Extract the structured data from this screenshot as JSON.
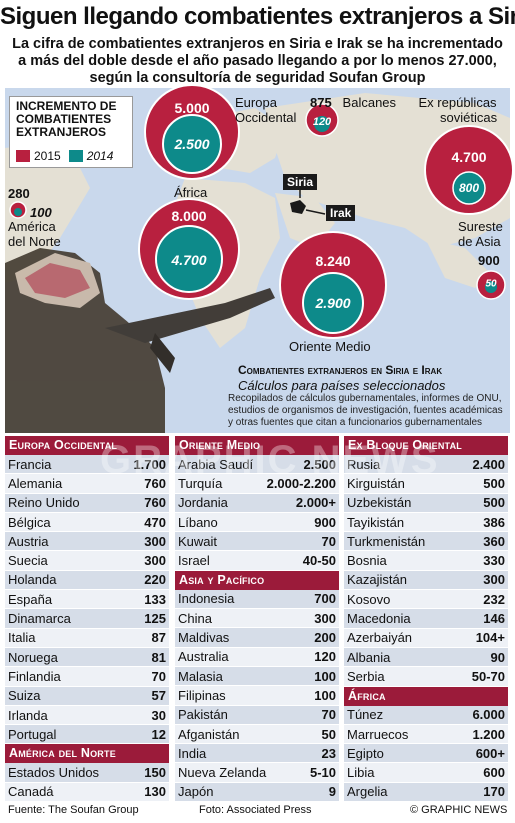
{
  "headline": "Siguen llegando combatientes extranjeros a Siria",
  "subhead": "La cifra de combatientes extranjeros en Siria e Irak se ha incrementado a más del doble desde el año pasado llegando a por lo menos 27.000, según la consultoría de seguridad Soufan Group",
  "legend": {
    "title_line1": "Incremento de",
    "title_line2": "combatientes",
    "title_line3": "extranjeros",
    "year_2015": "2015",
    "year_2014": "2014",
    "color_2015": "#b8203f",
    "color_2014": "#0d8a8a"
  },
  "regions": {
    "europa": {
      "name_line1": "Europa",
      "name_line2": "Occidental",
      "v2015": "5.000",
      "v2014": "2.500"
    },
    "balcanes": {
      "name": "Balcanes",
      "v2015": "875",
      "v2014": "120"
    },
    "exrep": {
      "name_line1": "Ex repúblicas",
      "name_line2": "soviéticas",
      "v2015": "4.700",
      "v2014": "800"
    },
    "america": {
      "name_line1": "América",
      "name_line2": "del Norte",
      "v2015": "280",
      "v2014": "100"
    },
    "africa": {
      "name": "África",
      "v2015": "8.000",
      "v2014": "4.700"
    },
    "oriente": {
      "name": "Oriente Medio",
      "v2015": "8.240",
      "v2014": "2.900"
    },
    "sureste": {
      "name_line1": "Sureste",
      "name_line2": "de Asia",
      "v2015": "900",
      "v2014": "50"
    }
  },
  "tags": {
    "siria": "Siria",
    "irak": "Irak"
  },
  "info": {
    "title": "Combatientes extranjeros en Siria e Irak",
    "subtitle": "Cálculos para países seleccionados",
    "source": "Recopilados de cálculos gubernamentales, informes de ONU, estudios de organismos de investigación, fuentes académicas y otras fuentes que citan a funcionarios gubernamentales"
  },
  "watermark": "GRAPHIC NEWS",
  "col1": {
    "europa": {
      "title": "Europa Occidental",
      "rows": [
        {
          "n": "Francia",
          "v": "1.700"
        },
        {
          "n": "Alemania",
          "v": "760"
        },
        {
          "n": "Reino Unido",
          "v": "760"
        },
        {
          "n": "Bélgica",
          "v": "470"
        },
        {
          "n": "Austria",
          "v": "300"
        },
        {
          "n": "Suecia",
          "v": "300"
        },
        {
          "n": "Holanda",
          "v": "220"
        },
        {
          "n": "España",
          "v": "133"
        },
        {
          "n": "Dinamarca",
          "v": "125"
        },
        {
          "n": "Italia",
          "v": "87"
        },
        {
          "n": "Noruega",
          "v": "81"
        },
        {
          "n": "Finlandia",
          "v": "70"
        },
        {
          "n": "Suiza",
          "v": "57"
        },
        {
          "n": "Irlanda",
          "v": "30"
        },
        {
          "n": "Portugal",
          "v": "12"
        }
      ]
    },
    "america": {
      "title": "América del Norte",
      "rows": [
        {
          "n": "Estados Unidos",
          "v": "150"
        },
        {
          "n": "Canadá",
          "v": "130"
        }
      ]
    }
  },
  "col2": {
    "oriente": {
      "title": "Oriente Medio",
      "rows": [
        {
          "n": "Arabia Saudí",
          "v": "2.500"
        },
        {
          "n": "Turquía",
          "v": "2.000-2.200"
        },
        {
          "n": "Jordania",
          "v": "2.000+"
        },
        {
          "n": "Líbano",
          "v": "900"
        },
        {
          "n": "Kuwait",
          "v": "70"
        },
        {
          "n": "Israel",
          "v": "40-50"
        }
      ]
    },
    "asia": {
      "title": "Asia y Pacífico",
      "rows": [
        {
          "n": "Indonesia",
          "v": "700"
        },
        {
          "n": "China",
          "v": "300"
        },
        {
          "n": "Maldivas",
          "v": "200"
        },
        {
          "n": "Australia",
          "v": "120"
        },
        {
          "n": "Malasia",
          "v": "100"
        },
        {
          "n": "Filipinas",
          "v": "100"
        },
        {
          "n": "Pakistán",
          "v": "70"
        },
        {
          "n": "Afganistán",
          "v": "50"
        },
        {
          "n": "India",
          "v": "23"
        },
        {
          "n": "Nueva Zelanda",
          "v": "5-10"
        },
        {
          "n": "Japón",
          "v": "9"
        }
      ]
    }
  },
  "col3": {
    "exbloque": {
      "title": "Ex Bloque Oriental",
      "rows": [
        {
          "n": "Rusia",
          "v": "2.400"
        },
        {
          "n": "Kirguistán",
          "v": "500"
        },
        {
          "n": "Uzbekistán",
          "v": "500"
        },
        {
          "n": "Tayikistán",
          "v": "386"
        },
        {
          "n": "Turkmenistán",
          "v": "360"
        },
        {
          "n": "Bosnia",
          "v": "330"
        },
        {
          "n": "Kazajistán",
          "v": "300"
        },
        {
          "n": "Kosovo",
          "v": "232"
        },
        {
          "n": "Macedonia",
          "v": "146"
        },
        {
          "n": "Azerbaiyán",
          "v": "104+"
        },
        {
          "n": "Albania",
          "v": "90"
        },
        {
          "n": "Serbia",
          "v": "50-70"
        }
      ]
    },
    "africa": {
      "title": "África",
      "rows": [
        {
          "n": "Túnez",
          "v": "6.000"
        },
        {
          "n": "Marruecos",
          "v": "1.200"
        },
        {
          "n": "Egipto",
          "v": "600+"
        },
        {
          "n": "Libia",
          "v": "600"
        },
        {
          "n": "Argelia",
          "v": "170"
        }
      ]
    }
  },
  "footer": {
    "source": "Fuente: The Soufan Group",
    "photo": "Foto: Associated Press",
    "credit": "© GRAPHIC NEWS"
  }
}
